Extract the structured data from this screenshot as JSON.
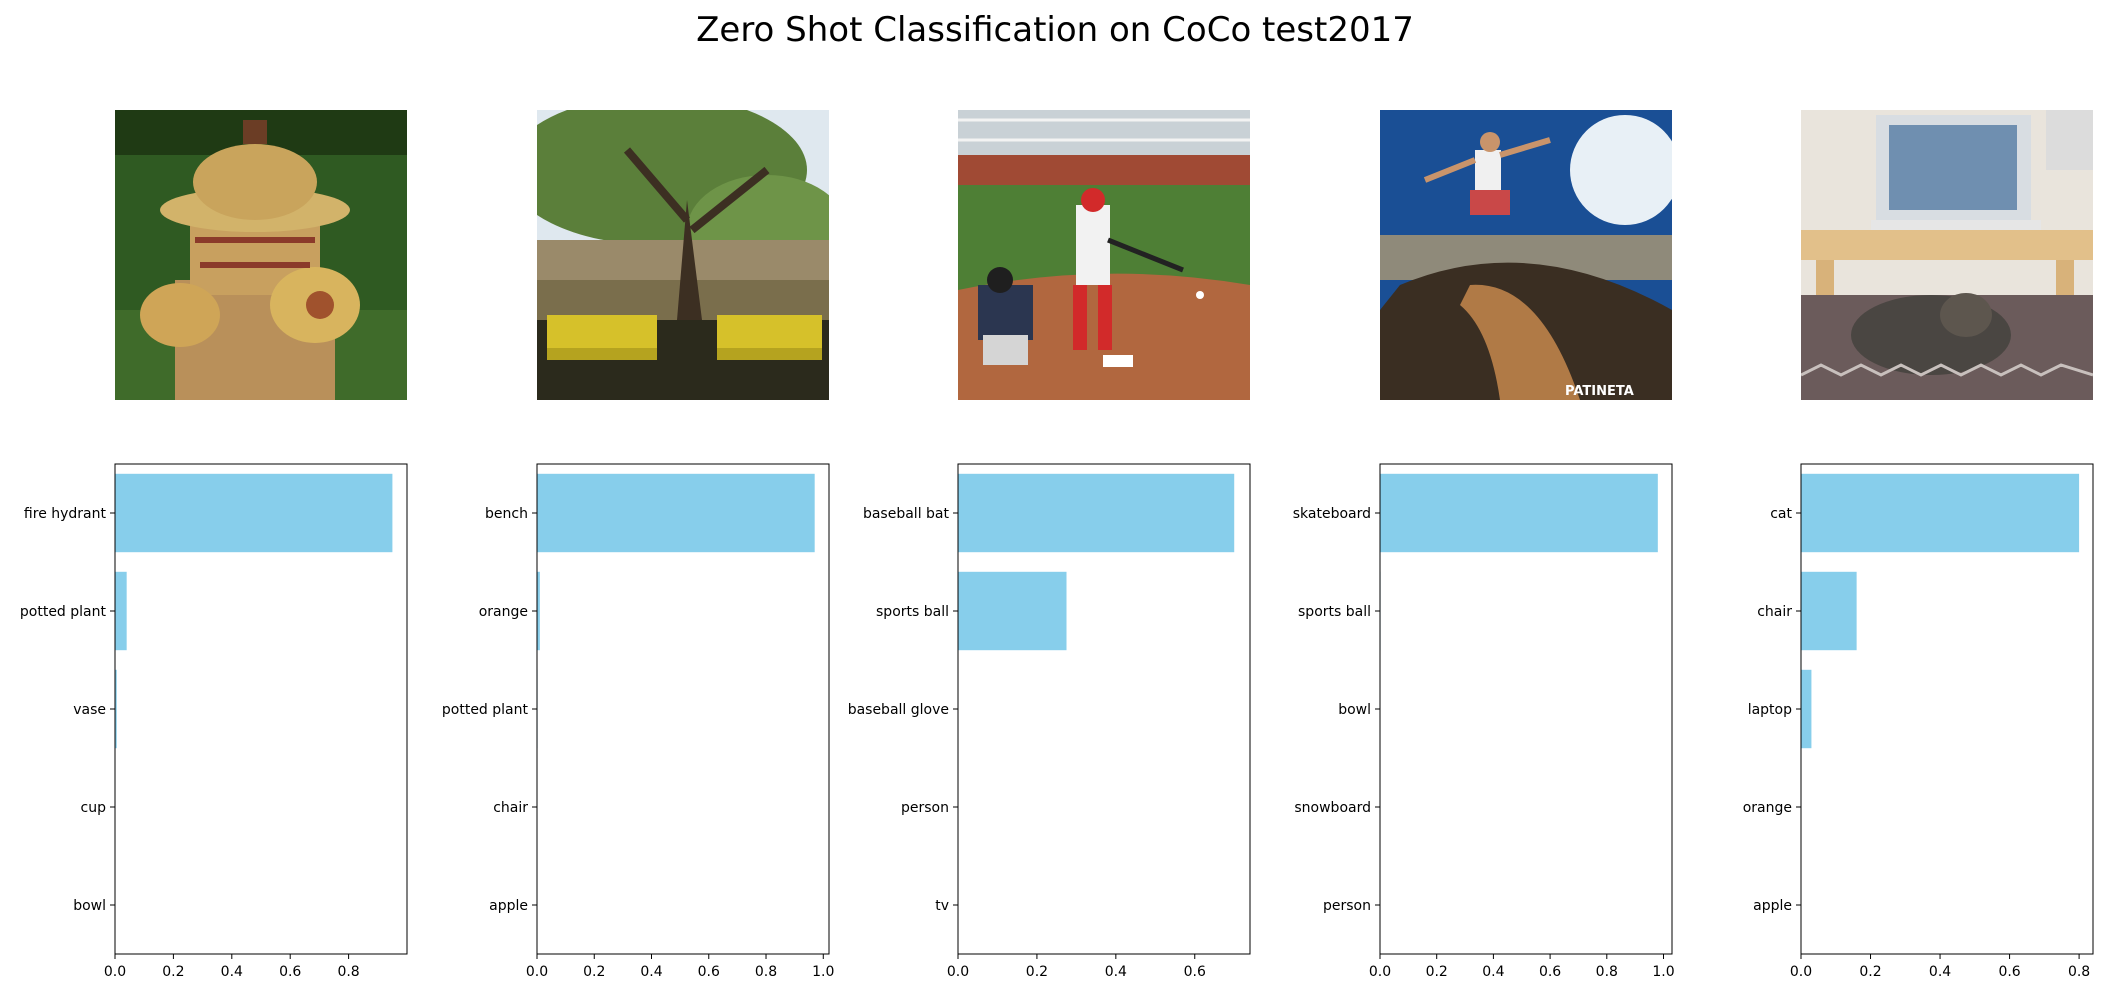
{
  "title": "Zero Shot Classification on CoCo test2017",
  "images": [
    {
      "subject": "fire hydrant on grass"
    },
    {
      "subject": "tree with two yellow benches by a river"
    },
    {
      "subject": "baseball batter and catcher"
    },
    {
      "subject": "skateboarder on a half pipe",
      "watermark": "PATINETA"
    },
    {
      "subject": "laptop on a wooden tray with a cat underneath"
    }
  ],
  "chart_data": [
    {
      "type": "bar",
      "orientation": "horizontal",
      "categories": [
        "fire hydrant",
        "potted plant",
        "vase",
        "cup",
        "bowl"
      ],
      "values": [
        0.95,
        0.04,
        0.006,
        0.001,
        0.001
      ],
      "xlim": [
        0,
        1.0
      ],
      "xticks": [
        "0.0",
        "0.2",
        "0.4",
        "0.6",
        "0.8"
      ],
      "color": "#87ceeb"
    },
    {
      "type": "bar",
      "orientation": "horizontal",
      "categories": [
        "bench",
        "orange",
        "potted plant",
        "chair",
        "apple"
      ],
      "values": [
        0.97,
        0.01,
        0.002,
        0.001,
        0.001
      ],
      "xlim": [
        0,
        1.02
      ],
      "xticks": [
        "0.0",
        "0.2",
        "0.4",
        "0.6",
        "0.8",
        "1.0"
      ],
      "color": "#87ceeb"
    },
    {
      "type": "bar",
      "orientation": "horizontal",
      "categories": [
        "baseball bat",
        "sports ball",
        "baseball glove",
        "person",
        "tv"
      ],
      "values": [
        0.7,
        0.275,
        0.001,
        0.001,
        0.001
      ],
      "xlim": [
        0,
        0.74
      ],
      "xticks": [
        "0.0",
        "0.2",
        "0.4",
        "0.6"
      ],
      "color": "#87ceeb"
    },
    {
      "type": "bar",
      "orientation": "horizontal",
      "categories": [
        "skateboard",
        "sports ball",
        "bowl",
        "snowboard",
        "person"
      ],
      "values": [
        0.98,
        0.002,
        0.001,
        0.001,
        0.001
      ],
      "xlim": [
        0,
        1.03
      ],
      "xticks": [
        "0.0",
        "0.2",
        "0.4",
        "0.6",
        "0.8",
        "1.0"
      ],
      "color": "#87ceeb"
    },
    {
      "type": "bar",
      "orientation": "horizontal",
      "categories": [
        "cat",
        "chair",
        "laptop",
        "orange",
        "apple"
      ],
      "values": [
        0.8,
        0.16,
        0.03,
        0.001,
        0.001
      ],
      "xlim": [
        0,
        0.84
      ],
      "xticks": [
        "0.0",
        "0.2",
        "0.4",
        "0.6",
        "0.8"
      ],
      "color": "#87ceeb"
    }
  ]
}
